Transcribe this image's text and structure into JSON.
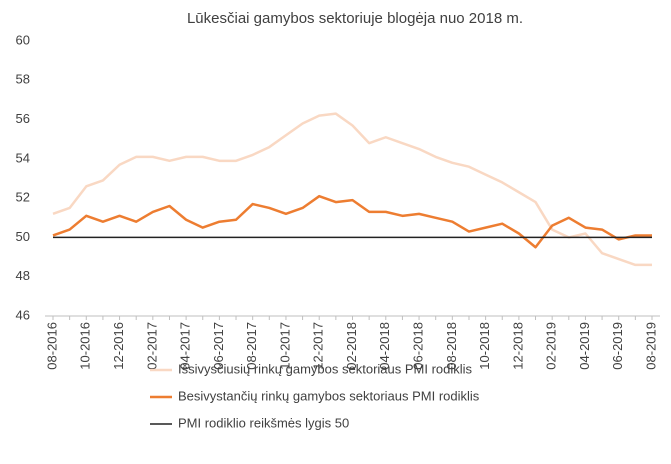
{
  "chart_data": {
    "type": "line",
    "title": "Lūkesčiai gamybos sektoriuje blogėja nuo 2018 m.",
    "categories": [
      "08-2016",
      null,
      "10-2016",
      null,
      "12-2016",
      null,
      "02-2017",
      null,
      "04-2017",
      null,
      "06-2017",
      null,
      "08-2017",
      null,
      "10-2017",
      null,
      "12-2017",
      null,
      "02-2018",
      null,
      "04-2018",
      null,
      "06-2018",
      null,
      "08-2018",
      null,
      "10-2018",
      null,
      "12-2018",
      null,
      "02-2019",
      null,
      "04-2019",
      null,
      "06-2019",
      null,
      "08-2019"
    ],
    "series": [
      {
        "name": "Išsivysčiusių rinkų gamybos sektoriaus PMI rodiklis",
        "color": "#f9d8c3",
        "values": [
          51.2,
          51.5,
          52.6,
          52.9,
          53.7,
          54.1,
          54.1,
          53.9,
          54.1,
          54.1,
          53.9,
          53.9,
          54.2,
          54.6,
          55.2,
          55.8,
          56.2,
          56.3,
          55.7,
          54.8,
          55.1,
          54.8,
          54.5,
          54.1,
          53.8,
          53.6,
          53.2,
          52.8,
          52.3,
          51.8,
          50.4,
          50.0,
          50.2,
          49.2,
          48.9,
          48.6,
          48.6
        ]
      },
      {
        "name": "Besivystančių rinkų gamybos sektoriaus PMI rodiklis",
        "color": "#ed7d31",
        "values": [
          50.1,
          50.4,
          51.1,
          50.8,
          51.1,
          50.8,
          51.3,
          51.6,
          50.9,
          50.5,
          50.8,
          50.9,
          51.7,
          51.5,
          51.2,
          51.5,
          52.1,
          51.8,
          51.9,
          51.3,
          51.3,
          51.1,
          51.2,
          51.0,
          50.8,
          50.3,
          50.5,
          50.7,
          50.2,
          49.5,
          50.6,
          51.0,
          50.5,
          50.4,
          49.9,
          50.1,
          50.1
        ]
      },
      {
        "name": "PMI rodiklio reikšmės lygis 50",
        "color": "#222222",
        "values": [
          50,
          50,
          50,
          50,
          50,
          50,
          50,
          50,
          50,
          50,
          50,
          50,
          50,
          50,
          50,
          50,
          50,
          50,
          50,
          50,
          50,
          50,
          50,
          50,
          50,
          50,
          50,
          50,
          50,
          50,
          50,
          50,
          50,
          50,
          50,
          50,
          50
        ]
      }
    ],
    "ylim": [
      46,
      60
    ],
    "yticks": [
      46,
      48,
      50,
      52,
      54,
      56,
      58,
      60
    ],
    "grid": false,
    "legend": "bottom"
  }
}
